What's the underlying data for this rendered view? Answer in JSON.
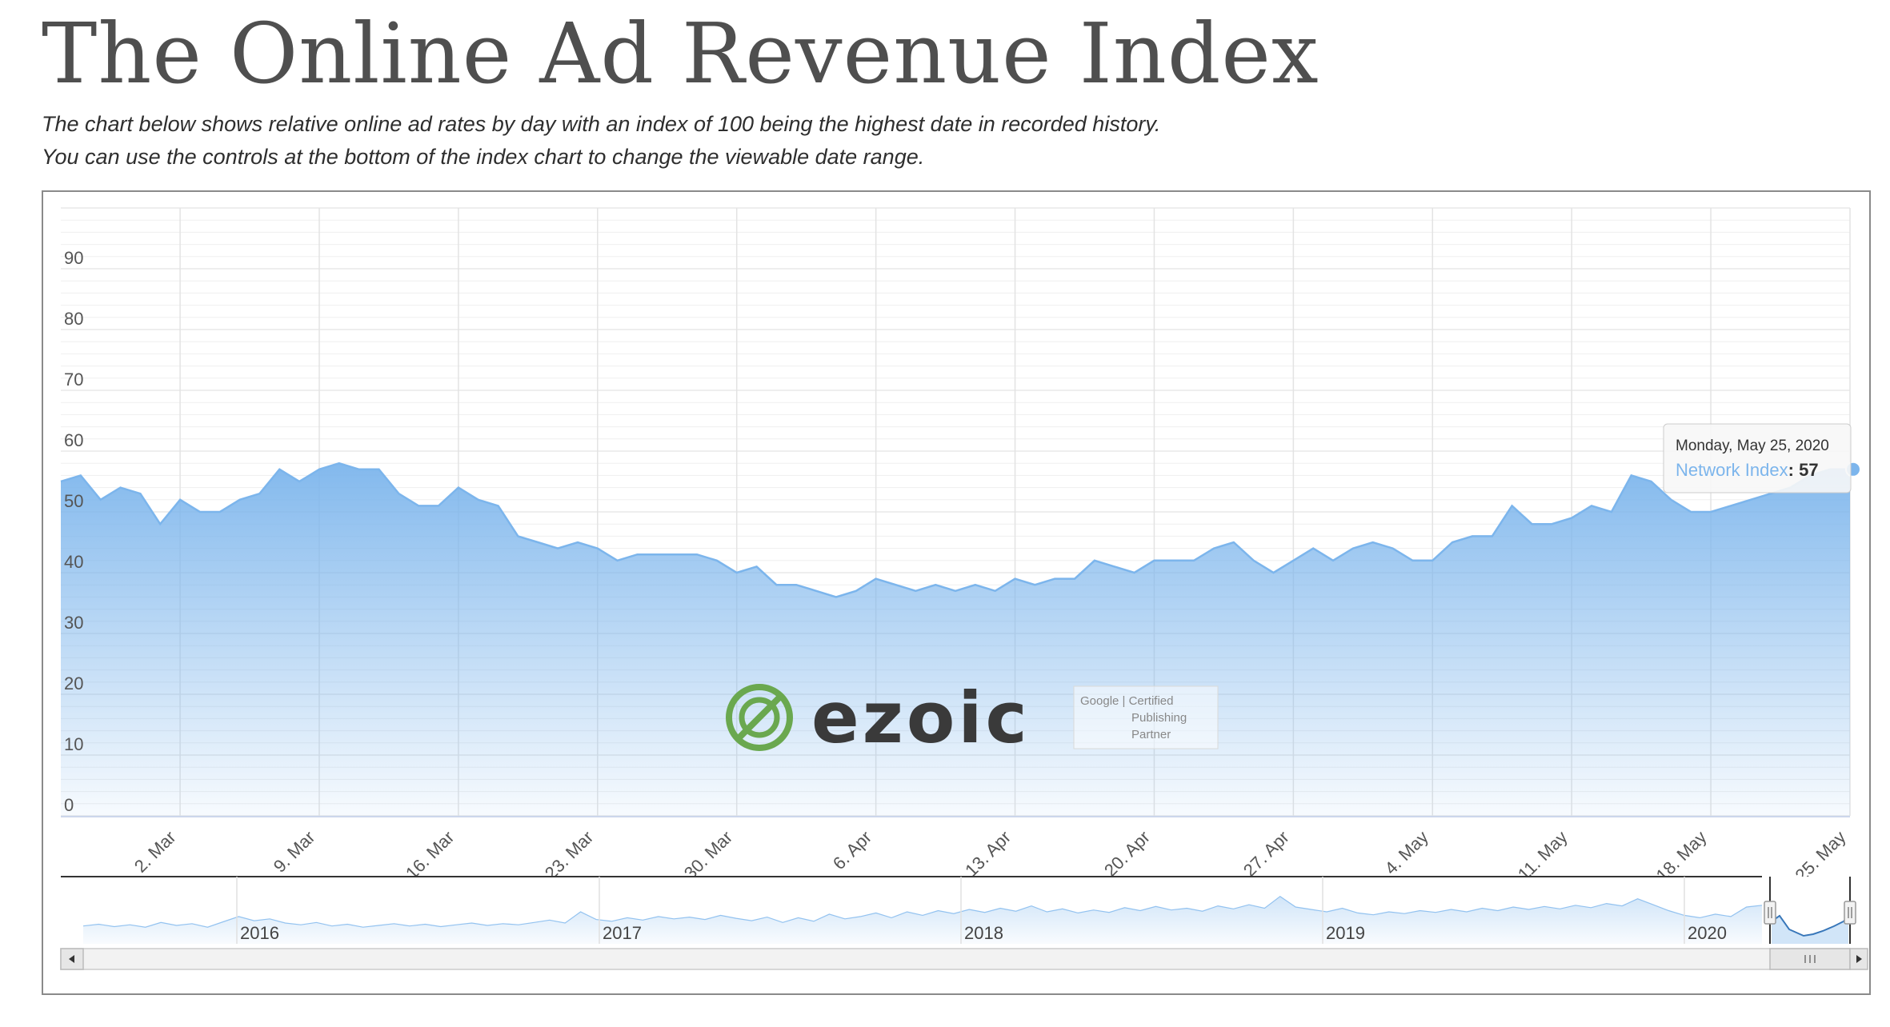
{
  "page": {
    "title": "The Online Ad Revenue Index",
    "subtitle_line1": "The chart below shows relative online ad rates by day with an index of 100 being the highest date in recorded history.",
    "subtitle_line2": "You can use the controls at the bottom of the index chart to change the viewable date range."
  },
  "chart_data": {
    "type": "area",
    "title": "",
    "xlabel": "",
    "ylabel": "",
    "ylim": [
      0,
      100
    ],
    "y_ticks": [
      0,
      10,
      20,
      30,
      40,
      50,
      60,
      70,
      80,
      90
    ],
    "x_range": [
      "2020-02-25",
      "2020-05-25"
    ],
    "x_tick_labels": [
      {
        "date": "2020-03-02",
        "label": "2. Mar"
      },
      {
        "date": "2020-03-09",
        "label": "9. Mar"
      },
      {
        "date": "2020-03-16",
        "label": "16. Mar"
      },
      {
        "date": "2020-03-23",
        "label": "23. Mar"
      },
      {
        "date": "2020-03-30",
        "label": "30. Mar"
      },
      {
        "date": "2020-04-06",
        "label": "6. Apr"
      },
      {
        "date": "2020-04-13",
        "label": "13. Apr"
      },
      {
        "date": "2020-04-20",
        "label": "20. Apr"
      },
      {
        "date": "2020-04-27",
        "label": "27. Apr"
      },
      {
        "date": "2020-05-04",
        "label": "4. May"
      },
      {
        "date": "2020-05-11",
        "label": "11. May"
      },
      {
        "date": "2020-05-18",
        "label": "18. May"
      },
      {
        "date": "2020-05-25",
        "label": "25. May"
      }
    ],
    "grid": true,
    "series": [
      {
        "name": "Network Index",
        "color": "#7cb5ec",
        "points": [
          [
            "2020-02-25",
            55
          ],
          [
            "2020-02-26",
            56
          ],
          [
            "2020-02-27",
            52
          ],
          [
            "2020-02-28",
            54
          ],
          [
            "2020-02-29",
            53
          ],
          [
            "2020-03-01",
            48
          ],
          [
            "2020-03-02",
            52
          ],
          [
            "2020-03-03",
            50
          ],
          [
            "2020-03-04",
            50
          ],
          [
            "2020-03-05",
            52
          ],
          [
            "2020-03-06",
            53
          ],
          [
            "2020-03-07",
            57
          ],
          [
            "2020-03-08",
            55
          ],
          [
            "2020-03-09",
            57
          ],
          [
            "2020-03-10",
            58
          ],
          [
            "2020-03-11",
            57
          ],
          [
            "2020-03-12",
            57
          ],
          [
            "2020-03-13",
            53
          ],
          [
            "2020-03-14",
            51
          ],
          [
            "2020-03-15",
            51
          ],
          [
            "2020-03-16",
            54
          ],
          [
            "2020-03-17",
            52
          ],
          [
            "2020-03-18",
            51
          ],
          [
            "2020-03-19",
            46
          ],
          [
            "2020-03-20",
            45
          ],
          [
            "2020-03-21",
            44
          ],
          [
            "2020-03-22",
            45
          ],
          [
            "2020-03-23",
            44
          ],
          [
            "2020-03-24",
            42
          ],
          [
            "2020-03-25",
            43
          ],
          [
            "2020-03-26",
            43
          ],
          [
            "2020-03-27",
            43
          ],
          [
            "2020-03-28",
            43
          ],
          [
            "2020-03-29",
            42
          ],
          [
            "2020-03-30",
            40
          ],
          [
            "2020-03-31",
            41
          ],
          [
            "2020-04-01",
            38
          ],
          [
            "2020-04-02",
            38
          ],
          [
            "2020-04-03",
            37
          ],
          [
            "2020-04-04",
            36
          ],
          [
            "2020-04-05",
            37
          ],
          [
            "2020-04-06",
            39
          ],
          [
            "2020-04-07",
            38
          ],
          [
            "2020-04-08",
            37
          ],
          [
            "2020-04-09",
            38
          ],
          [
            "2020-04-10",
            37
          ],
          [
            "2020-04-11",
            38
          ],
          [
            "2020-04-12",
            37
          ],
          [
            "2020-04-13",
            39
          ],
          [
            "2020-04-14",
            38
          ],
          [
            "2020-04-15",
            39
          ],
          [
            "2020-04-16",
            39
          ],
          [
            "2020-04-17",
            42
          ],
          [
            "2020-04-18",
            41
          ],
          [
            "2020-04-19",
            40
          ],
          [
            "2020-04-20",
            42
          ],
          [
            "2020-04-21",
            42
          ],
          [
            "2020-04-22",
            42
          ],
          [
            "2020-04-23",
            44
          ],
          [
            "2020-04-24",
            45
          ],
          [
            "2020-04-25",
            42
          ],
          [
            "2020-04-26",
            40
          ],
          [
            "2020-04-27",
            42
          ],
          [
            "2020-04-28",
            44
          ],
          [
            "2020-04-29",
            42
          ],
          [
            "2020-04-30",
            44
          ],
          [
            "2020-05-01",
            45
          ],
          [
            "2020-05-02",
            44
          ],
          [
            "2020-05-03",
            42
          ],
          [
            "2020-05-04",
            42
          ],
          [
            "2020-05-05",
            45
          ],
          [
            "2020-05-06",
            46
          ],
          [
            "2020-05-07",
            46
          ],
          [
            "2020-05-08",
            51
          ],
          [
            "2020-05-09",
            48
          ],
          [
            "2020-05-10",
            48
          ],
          [
            "2020-05-11",
            49
          ],
          [
            "2020-05-12",
            51
          ],
          [
            "2020-05-13",
            50
          ],
          [
            "2020-05-14",
            56
          ],
          [
            "2020-05-15",
            55
          ],
          [
            "2020-05-16",
            52
          ],
          [
            "2020-05-17",
            50
          ],
          [
            "2020-05-18",
            50
          ],
          [
            "2020-05-19",
            51
          ],
          [
            "2020-05-20",
            52
          ],
          [
            "2020-05-21",
            53
          ],
          [
            "2020-05-22",
            54
          ],
          [
            "2020-05-23",
            56
          ],
          [
            "2020-05-24",
            57
          ],
          [
            "2020-05-25",
            57
          ]
        ]
      }
    ],
    "tooltip": {
      "date": "Monday, May 25, 2020",
      "series": "Network Index",
      "value": "57"
    },
    "navigator": {
      "year_labels": [
        "2016",
        "2017",
        "2018",
        "2019",
        "2020"
      ],
      "overview": [
        22,
        25,
        21,
        24,
        20,
        28,
        23,
        26,
        20,
        29,
        38,
        31,
        34,
        27,
        24,
        28,
        22,
        25,
        20,
        23,
        26,
        22,
        25,
        21,
        24,
        27,
        23,
        26,
        24,
        28,
        32,
        27,
        46,
        33,
        30,
        36,
        32,
        38,
        34,
        37,
        33,
        40,
        35,
        31,
        37,
        28,
        36,
        30,
        42,
        34,
        38,
        44,
        36,
        46,
        40,
        48,
        43,
        50,
        45,
        52,
        47,
        56,
        46,
        51,
        44,
        49,
        45,
        53,
        48,
        55,
        49,
        52,
        47,
        56,
        51,
        58,
        52,
        72,
        54,
        50,
        46,
        52,
        44,
        41,
        46,
        43,
        48,
        45,
        50,
        46,
        52,
        48,
        54,
        50,
        55,
        51,
        57,
        53,
        60,
        56,
        68,
        58,
        48,
        40,
        36,
        42,
        38,
        54,
        57
      ]
    },
    "watermark": {
      "logo": "ezoic",
      "badge_line1": "Google | Certified",
      "badge_line2": "Publishing",
      "badge_line3": "Partner"
    }
  }
}
